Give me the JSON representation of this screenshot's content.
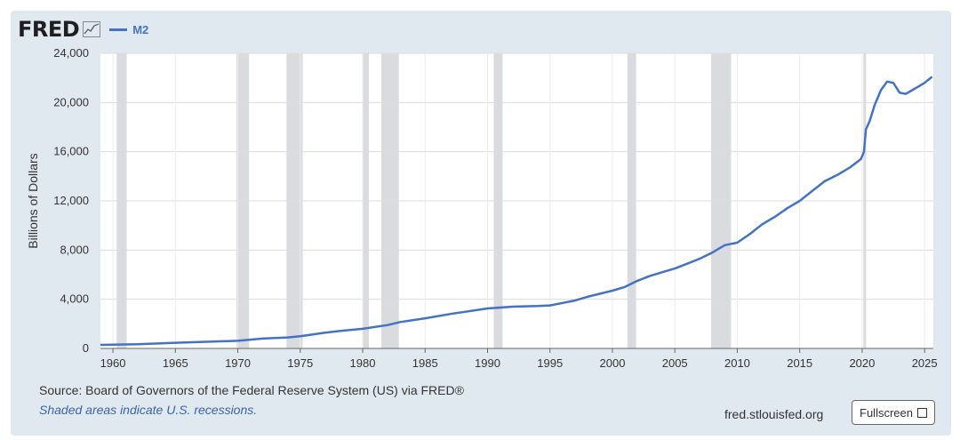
{
  "header": {
    "logo_text": "FRED",
    "logo_icon": "line-chart-icon",
    "legend_label": "M2"
  },
  "footer": {
    "source": "Source: Board of Governors of the Federal Reserve System (US) via FRED®",
    "note": "Shaded areas indicate U.S. recessions.",
    "link_text": "fred.stlouisfed.org",
    "fullscreen_label": "Fullscreen",
    "fullscreen_icon": "fullscreen-icon"
  },
  "colors": {
    "line": "#4472c4",
    "recession": "#d9dbde",
    "plot_bg": "#ffffff",
    "panel_bg": "#e1e9f0"
  },
  "chart_data": {
    "type": "line",
    "ylabel": "Billions of Dollars",
    "xlabel": "",
    "xlim": [
      1959,
      2025.7
    ],
    "ylim": [
      0,
      24000
    ],
    "x_ticks": [
      1960,
      1965,
      1970,
      1975,
      1980,
      1985,
      1990,
      1995,
      2000,
      2005,
      2010,
      2015,
      2020,
      2025
    ],
    "y_ticks": [
      0,
      4000,
      8000,
      12000,
      16000,
      20000,
      24000
    ],
    "y_tick_labels": [
      "0",
      "4,000",
      "8,000",
      "12,000",
      "16,000",
      "20,000",
      "24,000"
    ],
    "grid": true,
    "legend_position": "top-left",
    "recessions": [
      [
        1960.3,
        1961.1
      ],
      [
        1969.9,
        1970.9
      ],
      [
        1973.9,
        1975.2
      ],
      [
        1980.0,
        1980.5
      ],
      [
        1981.5,
        1982.9
      ],
      [
        1990.5,
        1991.2
      ],
      [
        2001.2,
        2001.9
      ],
      [
        2007.9,
        2009.5
      ],
      [
        2020.1,
        2020.3
      ]
    ],
    "series": [
      {
        "name": "M2",
        "x": [
          1959,
          1960,
          1962,
          1965,
          1968,
          1970,
          1972,
          1974,
          1975,
          1977,
          1978,
          1980,
          1982,
          1983,
          1985,
          1987,
          1988,
          1990,
          1992,
          1994,
          1995,
          1997,
          1998,
          2000,
          2001,
          2002,
          2003,
          2004,
          2005,
          2006,
          2007,
          2008,
          2009,
          2010,
          2011,
          2012,
          2013,
          2014,
          2015,
          2016,
          2017,
          2018,
          2019,
          2019.9,
          2020.15,
          2020.3,
          2020.6,
          2021,
          2021.5,
          2022,
          2022.5,
          2023,
          2023.5,
          2024,
          2024.5,
          2025,
          2025.6
        ],
        "y": [
          290,
          305,
          340,
          460,
          560,
          620,
          800,
          900,
          1000,
          1290,
          1400,
          1600,
          1900,
          2150,
          2450,
          2800,
          2950,
          3250,
          3400,
          3450,
          3500,
          3900,
          4200,
          4700,
          5000,
          5500,
          5900,
          6200,
          6500,
          6900,
          7300,
          7800,
          8400,
          8600,
          9300,
          10100,
          10700,
          11400,
          12000,
          12800,
          13600,
          14100,
          14700,
          15400,
          16000,
          17800,
          18500,
          19800,
          21000,
          21700,
          21600,
          20800,
          20700,
          21000,
          21300,
          21600,
          22100
        ]
      }
    ]
  }
}
